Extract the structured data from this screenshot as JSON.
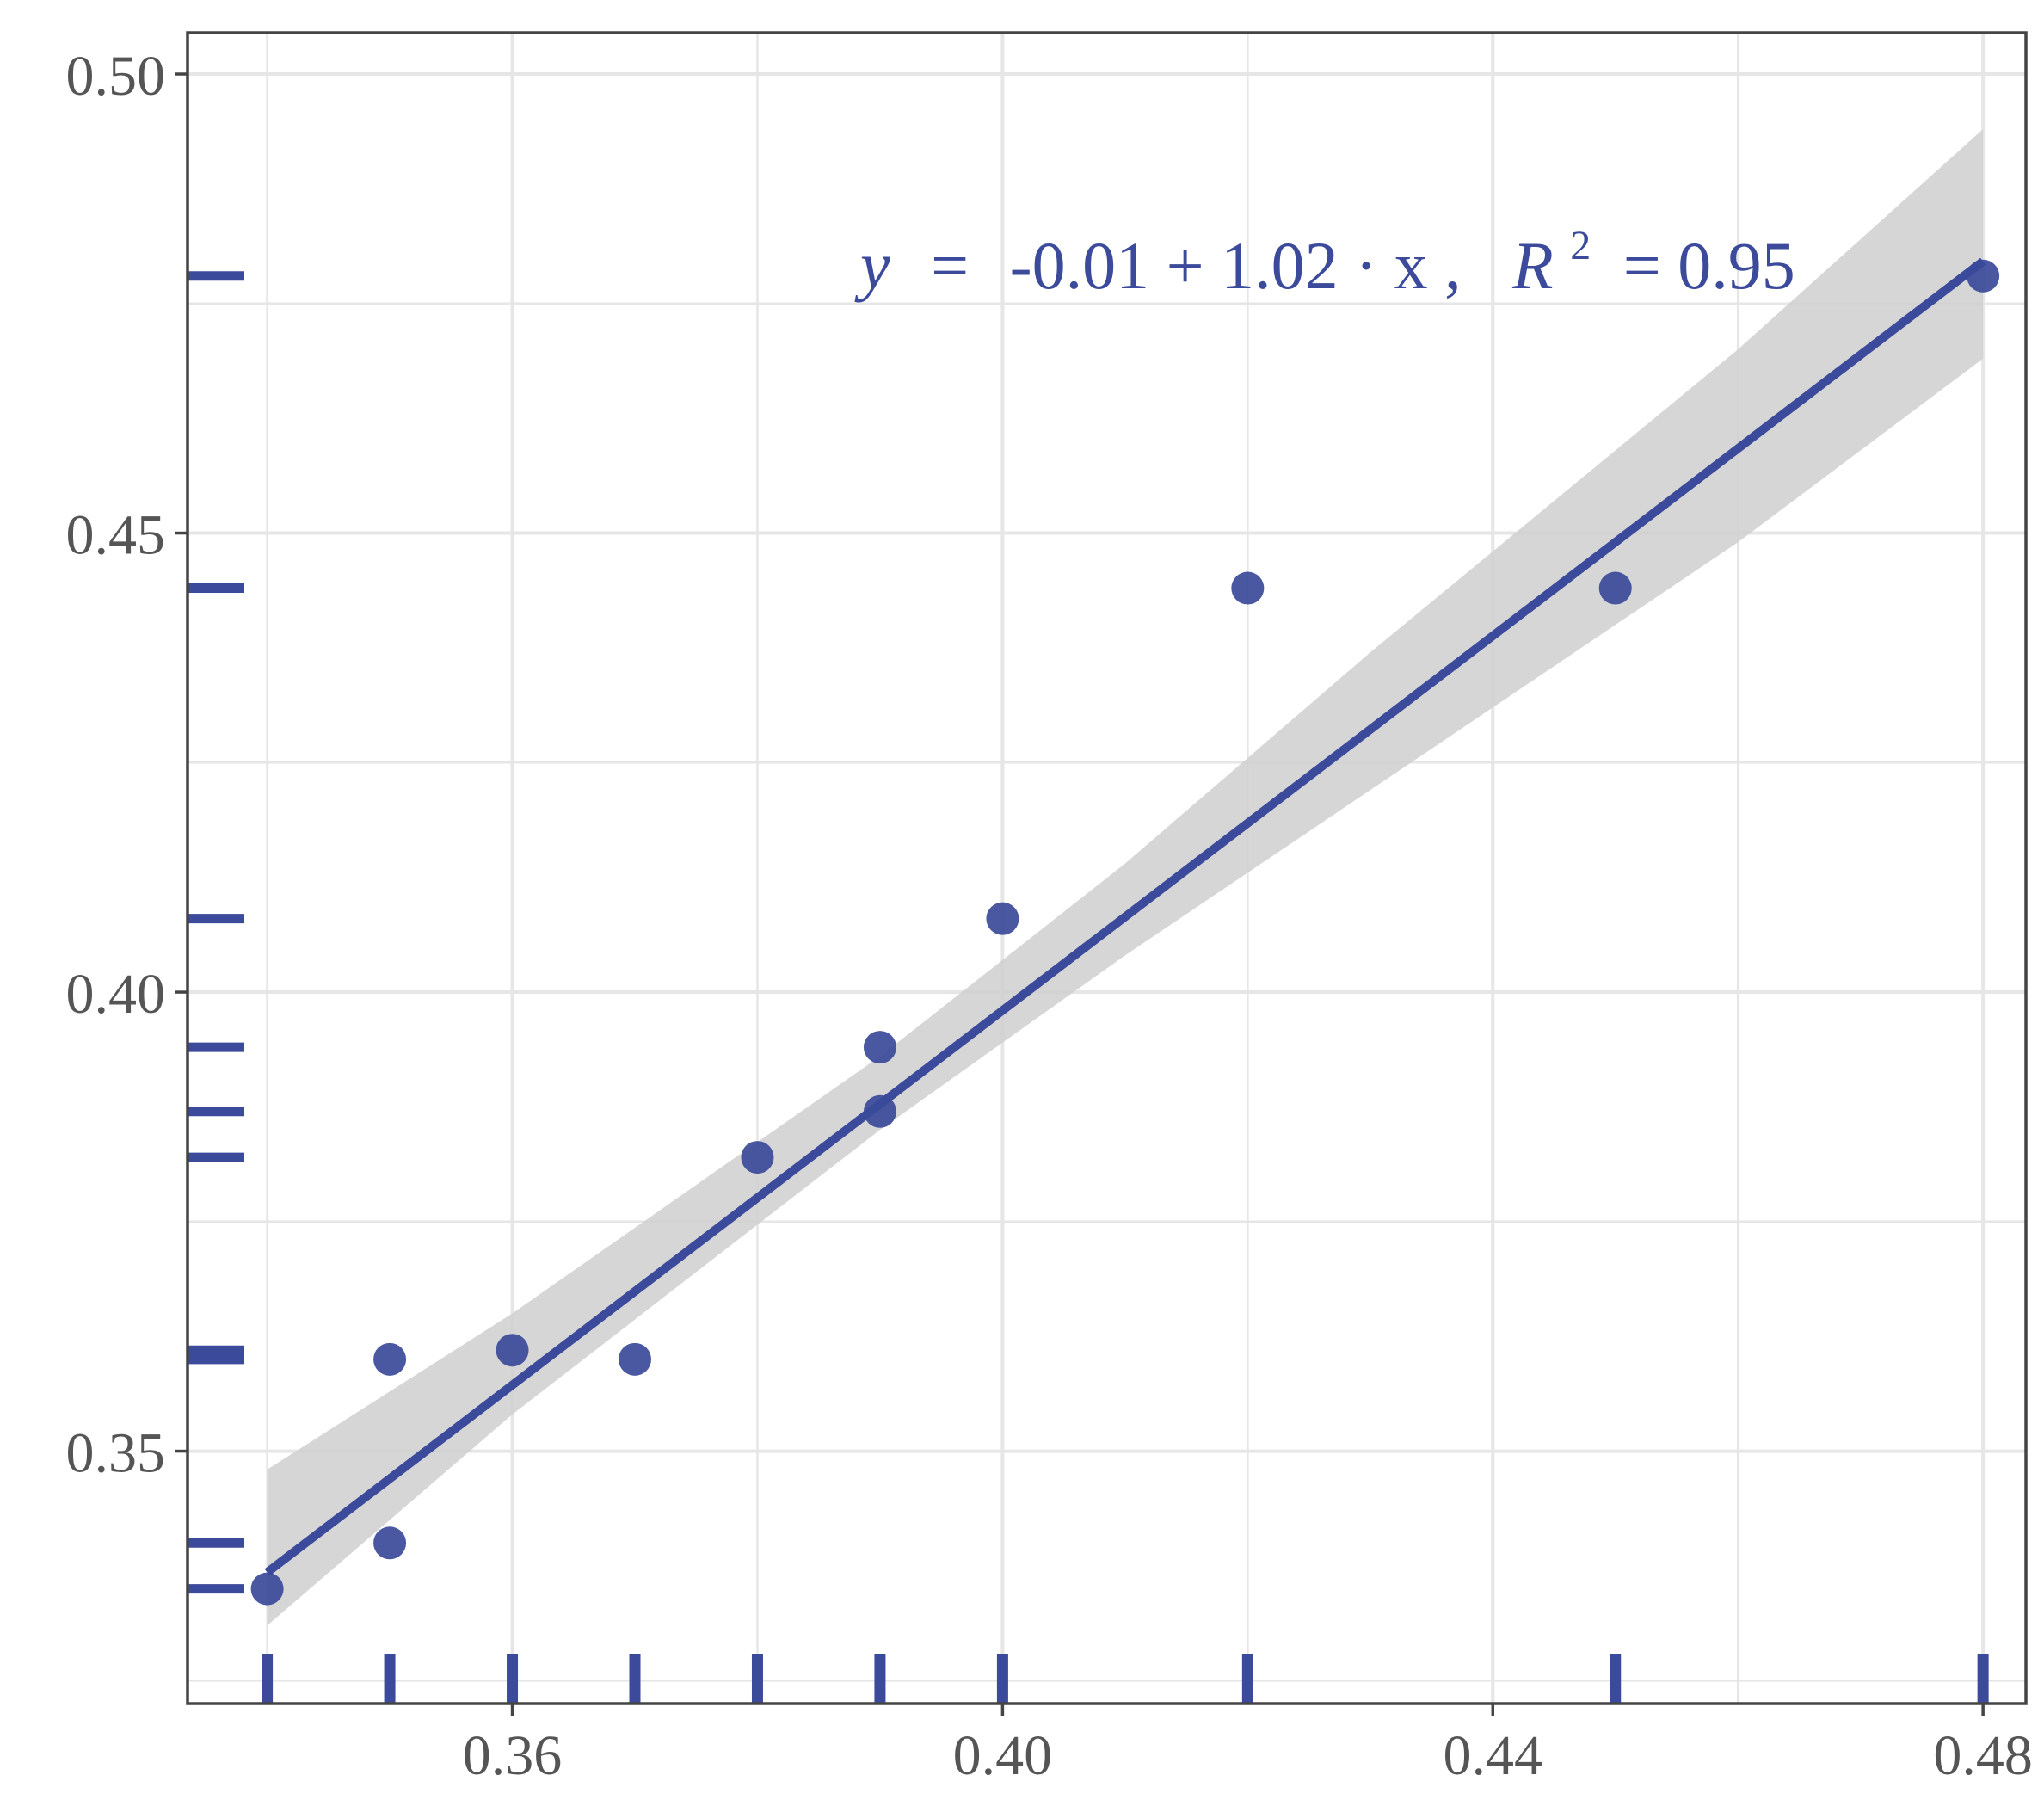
{
  "chart_data": {
    "type": "scatter",
    "title": "",
    "xlabel": "",
    "ylabel": "",
    "xlim": [
      0.3335,
      0.4835
    ],
    "ylim": [
      0.3225,
      0.5045
    ],
    "grid": true,
    "x_ticks": [
      "0.36",
      "0.40",
      "0.44",
      "0.48"
    ],
    "y_ticks": [
      "0.35",
      "0.40",
      "0.45",
      "0.50"
    ],
    "x_tick_values": [
      0.36,
      0.4,
      0.44,
      0.48
    ],
    "y_tick_values": [
      0.35,
      0.4,
      0.45,
      0.5
    ],
    "points": [
      {
        "x": 0.34,
        "y": 0.335
      },
      {
        "x": 0.35,
        "y": 0.34
      },
      {
        "x": 0.35,
        "y": 0.36
      },
      {
        "x": 0.36,
        "y": 0.361
      },
      {
        "x": 0.37,
        "y": 0.36
      },
      {
        "x": 0.38,
        "y": 0.382
      },
      {
        "x": 0.39,
        "y": 0.387
      },
      {
        "x": 0.39,
        "y": 0.394
      },
      {
        "x": 0.4,
        "y": 0.408
      },
      {
        "x": 0.42,
        "y": 0.444
      },
      {
        "x": 0.45,
        "y": 0.444
      },
      {
        "x": 0.48,
        "y": 0.478
      }
    ],
    "fit": {
      "intercept": -0.01,
      "slope": 1.02,
      "x_range": [
        0.34,
        0.48
      ],
      "confidence_band": [
        {
          "x": 0.34,
          "lower": 0.331,
          "upper": 0.348
        },
        {
          "x": 0.36,
          "lower": 0.354,
          "upper": 0.365
        },
        {
          "x": 0.39,
          "lower": 0.385,
          "upper": 0.393
        },
        {
          "x": 0.41,
          "lower": 0.404,
          "upper": 0.414
        },
        {
          "x": 0.43,
          "lower": 0.422,
          "upper": 0.437
        },
        {
          "x": 0.46,
          "lower": 0.449,
          "upper": 0.47
        },
        {
          "x": 0.48,
          "lower": 0.469,
          "upper": 0.494
        }
      ]
    },
    "rug": true,
    "annotation": {
      "y": "y",
      "eq": "=",
      "rhs": "-0.01 + 1.02 · x ,",
      "r": "R",
      "exp": "2",
      "r_rhs": "= 0.95"
    },
    "colors": {
      "points": "#3b4a9a",
      "line": "#3b4a9a",
      "band": "#cfcfcf",
      "grid": "#e6e6e6",
      "axis": "#444444"
    }
  }
}
